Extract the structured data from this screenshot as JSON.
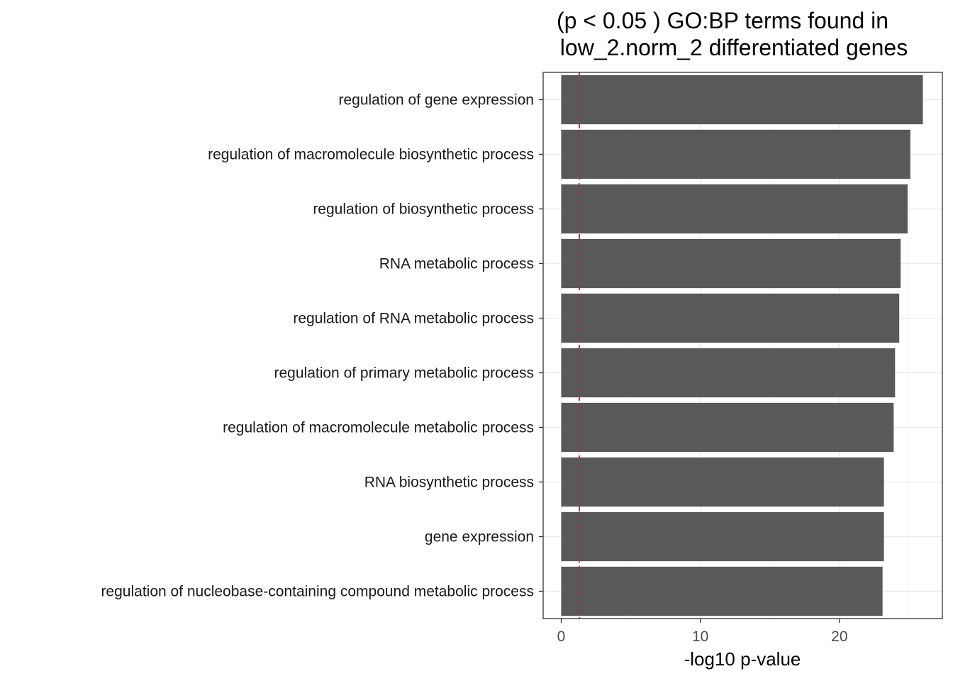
{
  "chart_data": {
    "type": "bar",
    "orientation": "horizontal",
    "title": [
      "(p < 0.05 ) GO:BP terms found in",
      "low_2.norm_2 differentiated genes"
    ],
    "xlabel": "-log10 p-value",
    "ylabel": "",
    "xlim": [
      -1.3,
      27.4
    ],
    "xticks": [
      0,
      10,
      20
    ],
    "grid": true,
    "categories": [
      "regulation of gene expression",
      "regulation of macromolecule biosynthetic process",
      "regulation of biosynthetic process",
      "RNA metabolic process",
      "regulation of RNA metabolic process",
      "regulation of primary metabolic process",
      "regulation of macromolecule metabolic process",
      "RNA biosynthetic process",
      "gene expression",
      "regulation of nucleobase-containing compound metabolic process"
    ],
    "values": [
      26.0,
      25.1,
      24.9,
      24.4,
      24.3,
      24.0,
      23.9,
      23.2,
      23.2,
      23.1
    ],
    "reference_line": {
      "value": 1.3,
      "style": "dashed",
      "color": "#e41a1c"
    },
    "colors": {
      "bar": "#595959",
      "panel_border": "#333333",
      "grid_major": "#ebebeb",
      "grid_minor": "#f5f5f5"
    }
  }
}
